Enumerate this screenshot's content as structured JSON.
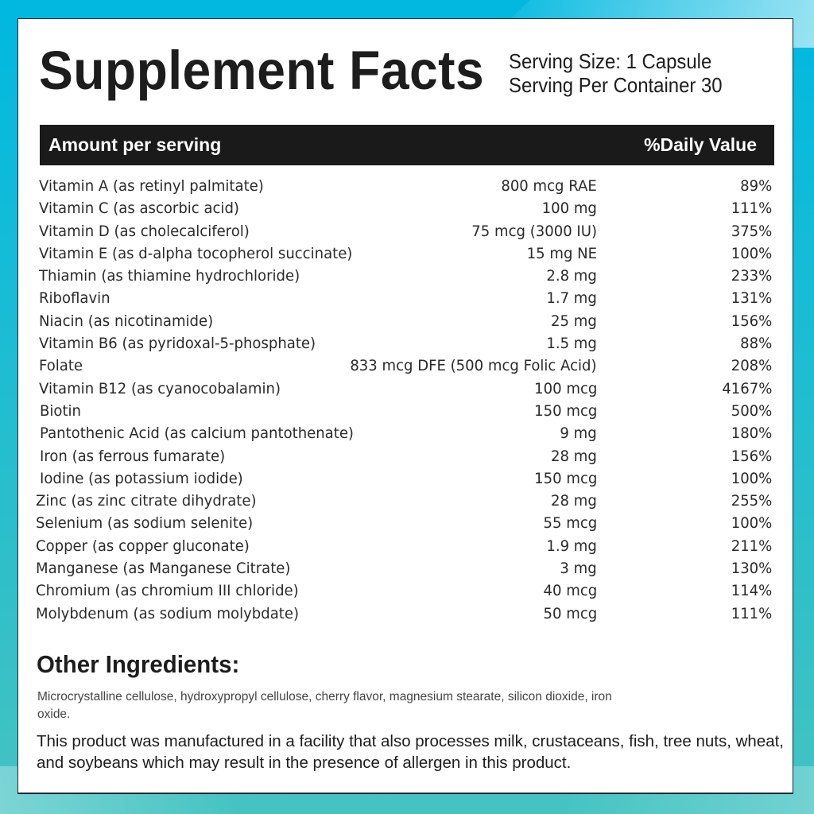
{
  "label": {
    "title": "Supplement Facts",
    "serving_size": "Serving Size: 1 Capsule",
    "servings_per_container": "Serving Per Container 30",
    "header": {
      "amount_label": "Amount per serving",
      "daily_value_label": "%Daily Value"
    },
    "nutrients": [
      {
        "name": "Vitamin A (as retinyl palmitate)",
        "amount": "800 mcg RAE",
        "dv": "89%"
      },
      {
        "name": "Vitamin C (as ascorbic acid)",
        "amount": "100 mg",
        "dv": "111%"
      },
      {
        "name": "Vitamin D (as cholecalciferol)",
        "amount": "75 mcg (3000 IU)",
        "dv": "375%"
      },
      {
        "name": "Vitamin E (as d-alpha tocopherol succinate)",
        "amount": "15 mg NE",
        "dv": "100%"
      },
      {
        "name": "Thiamin (as thiamine hydrochloride)",
        "amount": "2.8 mg",
        "dv": "233%"
      },
      {
        "name": "Riboflavin",
        "amount": "1.7 mg",
        "dv": "131%"
      },
      {
        "name": "Niacin (as nicotinamide)",
        "amount": "25 mg",
        "dv": "156%"
      },
      {
        "name": "Vitamin B6 (as pyridoxal-5-phosphate)",
        "amount": "1.5 mg",
        "dv": "88%"
      },
      {
        "name": "Folate",
        "amount": "833 mcg DFE (500 mcg Folic Acid)",
        "dv": "208%"
      },
      {
        "name": "Vitamin B12 (as cyanocobalamin)",
        "amount": "100 mcg",
        "dv": "4167%"
      },
      {
        "name": "Biotin",
        "amount": "150 mcg",
        "dv": "500%"
      },
      {
        "name": "Pantothenic Acid (as calcium pantothenate)",
        "amount": "9 mg",
        "dv": "180%"
      },
      {
        "name": "Iron (as ferrous fumarate)",
        "amount": "28 mg",
        "dv": "156%"
      },
      {
        "name": "Iodine (as potassium iodide)",
        "amount": "150 mcg",
        "dv": "100%"
      },
      {
        "name": "Zinc (as zinc citrate dihydrate)",
        "amount": "28 mg",
        "dv": "255%"
      },
      {
        "name": "Selenium (as sodium selenite)",
        "amount": "55 mcg",
        "dv": "100%"
      },
      {
        "name": "Copper (as copper gluconate)",
        "amount": "1.9 mg",
        "dv": "211%"
      },
      {
        "name": "Manganese (as Manganese Citrate)",
        "amount": "3 mg",
        "dv": "130%"
      },
      {
        "name": "Chromium (as chromium III chloride)",
        "amount": "40 mcg",
        "dv": "114%"
      },
      {
        "name": "Molybdenum (as sodium molybdate)",
        "amount": "50 mcg",
        "dv": "111%"
      }
    ],
    "other_ingredients": {
      "title": "Other Ingredients:",
      "text": "Microcrystalline cellulose, hydroxypropyl cellulose, cherry flavor, magnesium stearate, silicon dioxide, iron oxide."
    },
    "allergen_statement": "This product was manufactured in a facility that also processes milk, crustaceans, fish, tree nuts, wheat, and soybeans which may result in the presence of allergen in this product."
  },
  "colors": {
    "background_top": "#00b8e0",
    "background_bottom": "#45c3c2",
    "header_bar": "#1a1a1a",
    "panel": "#ffffff",
    "text": "#1d1d1d"
  }
}
